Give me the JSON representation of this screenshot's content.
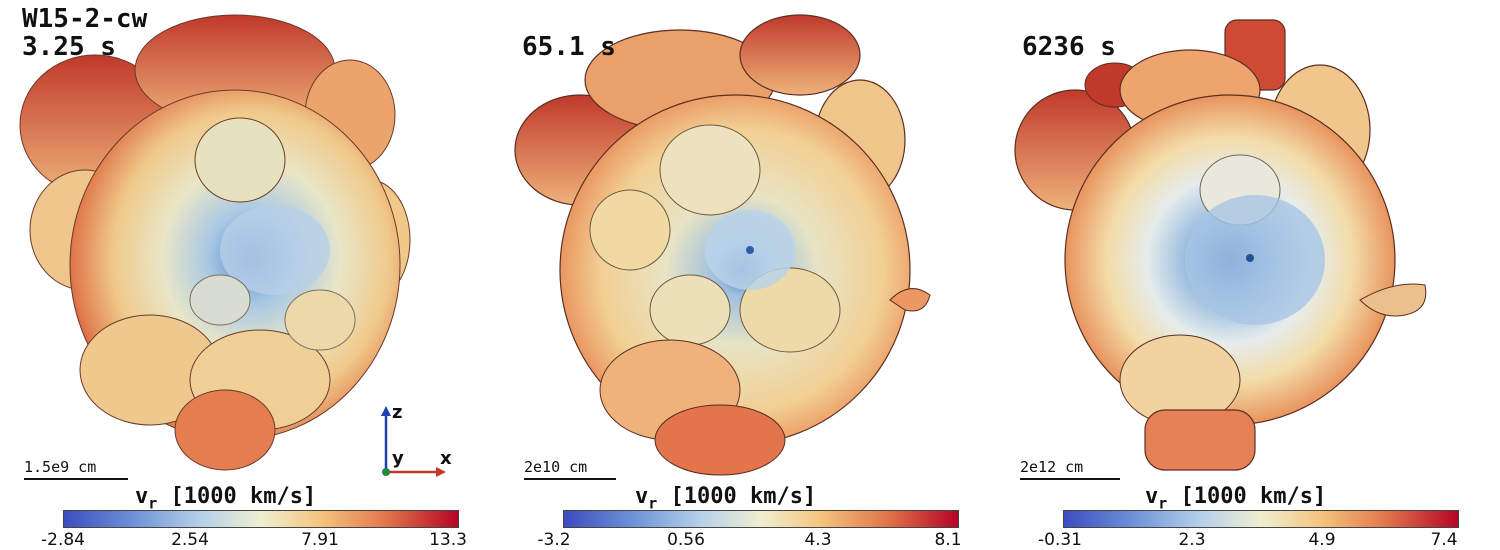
{
  "panels": [
    {
      "title_lines": [
        "W15-2-cw",
        "3.25 s"
      ],
      "scale_label": "1.5e9 cm",
      "colorbar_label_main": "v",
      "colorbar_label_sub": "r",
      "colorbar_label_unit": " [1000 km/s]",
      "ticks": [
        "-2.84",
        "2.54",
        "7.91",
        "13.3"
      ]
    },
    {
      "title_lines": [
        "65.1 s"
      ],
      "scale_label": "2e10 cm",
      "colorbar_label_main": "v",
      "colorbar_label_sub": "r",
      "colorbar_label_unit": " [1000 km/s]",
      "ticks": [
        "-3.2",
        "0.56",
        "4.3",
        "8.1"
      ]
    },
    {
      "title_lines": [
        "6236 s"
      ],
      "scale_label": "2e12 cm",
      "colorbar_label_main": "v",
      "colorbar_label_sub": "r",
      "colorbar_label_unit": " [1000 km/s]",
      "ticks": [
        "-0.31",
        "2.3",
        "4.9",
        "7.4"
      ]
    }
  ],
  "axes": {
    "z": "z",
    "y": "y",
    "x": "x"
  },
  "colors": {
    "low": "#3b4cc0",
    "mid": "#efefd0",
    "high": "#b40426"
  }
}
